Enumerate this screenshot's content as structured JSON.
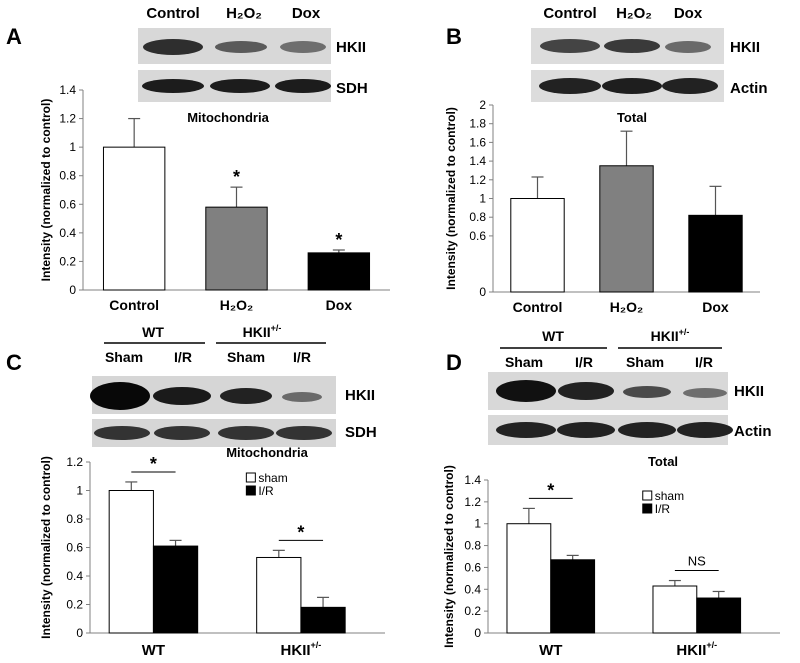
{
  "panels": {
    "A": {
      "letter": "A",
      "blot_columns": [
        "Control",
        "H₂O₂",
        "Dox"
      ],
      "blot_bands": [
        "HKII",
        "SDH"
      ]
    },
    "B": {
      "letter": "B",
      "blot_columns": [
        "Control",
        "H₂O₂",
        "Dox"
      ],
      "blot_bands": [
        "HKII",
        "Actin"
      ]
    },
    "C": {
      "letter": "C",
      "groups": [
        "WT",
        "HKII+/-"
      ],
      "lanes": [
        "Sham",
        "I/R",
        "Sham",
        "I/R"
      ],
      "blot_bands": [
        "HKII",
        "SDH"
      ]
    },
    "D": {
      "letter": "D",
      "groups": [
        "WT",
        "HKII+/-"
      ],
      "lanes": [
        "Sham",
        "I/R",
        "Sham",
        "I/R"
      ],
      "blot_bands": [
        "HKII",
        "Actin"
      ]
    }
  },
  "colors": {
    "white_bar": "#ffffff",
    "gray_bar": "#808080",
    "black_bar": "#000000",
    "axis": "#808080"
  },
  "chart_data": [
    {
      "id": "A",
      "type": "bar",
      "title": "Mitochondria",
      "ylabel": "Intensity (normalized to control)",
      "categories": [
        "Control",
        "H₂O₂",
        "Dox"
      ],
      "values": [
        1.0,
        0.58,
        0.26
      ],
      "errors": [
        0.2,
        0.14,
        0.02
      ],
      "bar_colors": [
        "#ffffff",
        "#808080",
        "#000000"
      ],
      "significance": [
        "",
        "*",
        "*"
      ],
      "ylim": [
        0,
        1.4
      ],
      "yticks": [
        0,
        0.2,
        0.4,
        0.6,
        0.8,
        1,
        1.2,
        1.4
      ]
    },
    {
      "id": "B",
      "type": "bar",
      "title": "Total",
      "ylabel": "Intensity (normalized to control)",
      "categories": [
        "Control",
        "H₂O₂",
        "Dox"
      ],
      "values": [
        1.0,
        1.35,
        0.82
      ],
      "errors": [
        0.23,
        0.37,
        0.31
      ],
      "bar_colors": [
        "#ffffff",
        "#808080",
        "#000000"
      ],
      "significance": [
        "",
        "",
        ""
      ],
      "ylim": [
        0,
        2
      ],
      "yticks": [
        0,
        0.6,
        0.8,
        1,
        1.2,
        1.4,
        1.6,
        1.8,
        2
      ]
    },
    {
      "id": "C",
      "type": "bar",
      "title": "Mitochondria",
      "ylabel": "Intensity (normalized to control)",
      "categories": [
        "WT",
        "HKII+/-"
      ],
      "series": [
        {
          "name": "sham",
          "values": [
            1.0,
            0.53
          ],
          "errors": [
            0.06,
            0.05
          ],
          "color": "#ffffff"
        },
        {
          "name": "I/R",
          "values": [
            0.61,
            0.18
          ],
          "errors": [
            0.04,
            0.07
          ],
          "color": "#000000"
        }
      ],
      "comparisons": [
        {
          "label": "*"
        },
        {
          "label": "*"
        }
      ],
      "legend": "top-right",
      "ylim": [
        0,
        1.2
      ],
      "yticks": [
        0,
        0.2,
        0.4,
        0.6,
        0.8,
        1,
        1.2
      ]
    },
    {
      "id": "D",
      "type": "bar",
      "title": "Total",
      "ylabel": "Intensity (normalized to control)",
      "categories": [
        "WT",
        "HKII+/-"
      ],
      "series": [
        {
          "name": "sham",
          "values": [
            1.0,
            0.43
          ],
          "errors": [
            0.14,
            0.05
          ],
          "color": "#ffffff"
        },
        {
          "name": "I/R",
          "values": [
            0.67,
            0.32
          ],
          "errors": [
            0.04,
            0.06
          ],
          "color": "#000000"
        }
      ],
      "comparisons": [
        {
          "label": "*"
        },
        {
          "label": "NS"
        }
      ],
      "legend": "top-right",
      "ylim": [
        0,
        1.4
      ],
      "yticks": [
        0,
        0.2,
        0.4,
        0.6,
        0.8,
        1,
        1.2,
        1.4
      ]
    }
  ]
}
